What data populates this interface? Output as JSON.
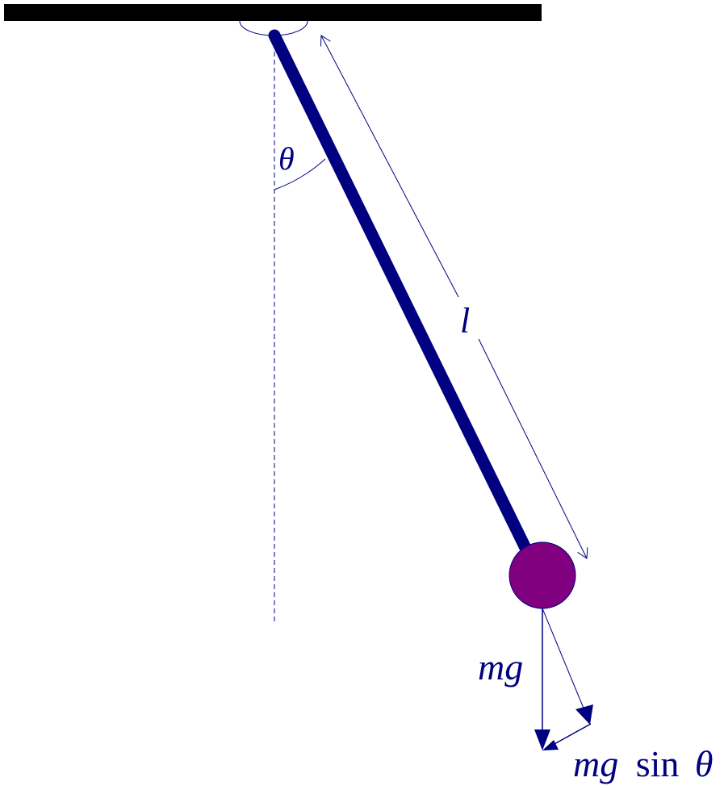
{
  "diagram": {
    "labels": {
      "theta": "θ",
      "length": "l",
      "weight": "mg",
      "tangential_mg": "mg",
      "tangential_sin": "sin",
      "tangential_theta": "θ"
    },
    "colors": {
      "ceiling": "#000000",
      "rod": "#000080",
      "bob": "#800080",
      "lines": "#000080",
      "text": "#000080"
    }
  }
}
